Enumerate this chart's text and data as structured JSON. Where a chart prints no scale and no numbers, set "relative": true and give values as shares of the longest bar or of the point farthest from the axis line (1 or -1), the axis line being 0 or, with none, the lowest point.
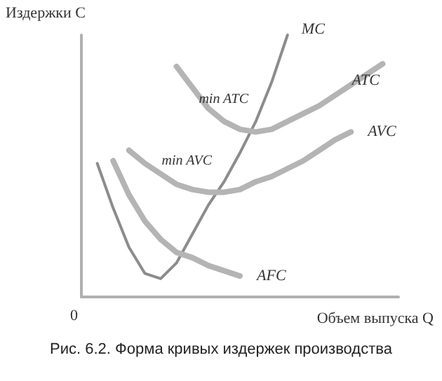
{
  "chart_data": {
    "type": "line",
    "relative": true,
    "ylabel": "Издержки C",
    "xlabel": "Объем выпуска Q",
    "categories": [
      null,
      null,
      null,
      null,
      null,
      null,
      null,
      null,
      null,
      null,
      null,
      null,
      null,
      null,
      null,
      null,
      null,
      null,
      null,
      null,
      null
    ],
    "series": [
      {
        "name": "MC",
        "color": "#8c8c8c",
        "values": [
          null,
          0.51,
          0.34,
          0.19,
          0.09,
          0.07,
          0.13,
          0.24,
          0.35,
          0.44,
          0.55,
          0.67,
          0.82,
          1,
          null,
          null,
          null,
          null,
          null,
          null,
          null
        ]
      },
      {
        "name": "ATC",
        "color": "#b4b4b4",
        "values": [
          null,
          null,
          null,
          null,
          null,
          null,
          0.88,
          0.8,
          0.72,
          0.67,
          0.64,
          0.63,
          0.64,
          0.67,
          0.7,
          0.73,
          0.77,
          0.81,
          0.85,
          0.89,
          null
        ]
      },
      {
        "name": "AVC",
        "color": "#b4b4b4",
        "values": [
          null,
          null,
          null,
          0.56,
          0.51,
          0.47,
          0.43,
          0.41,
          0.4,
          0.4,
          0.41,
          0.44,
          0.46,
          0.49,
          0.52,
          0.56,
          0.6,
          0.63,
          null,
          null,
          null
        ]
      },
      {
        "name": "AFC",
        "color": "#b4b4b4",
        "values": [
          null,
          null,
          0.52,
          0.39,
          0.29,
          0.22,
          0.17,
          0.15,
          0.12,
          0.1,
          0.08,
          null,
          null,
          null,
          null,
          null,
          null,
          null,
          null,
          null,
          null
        ]
      }
    ],
    "annotations": [
      "min ATC",
      "min AVC",
      "0",
      "Рис. 6.2. Форма кривых издержек производства"
    ],
    "marker": "none",
    "line_style": "solid",
    "grid": false,
    "legend": false
  }
}
